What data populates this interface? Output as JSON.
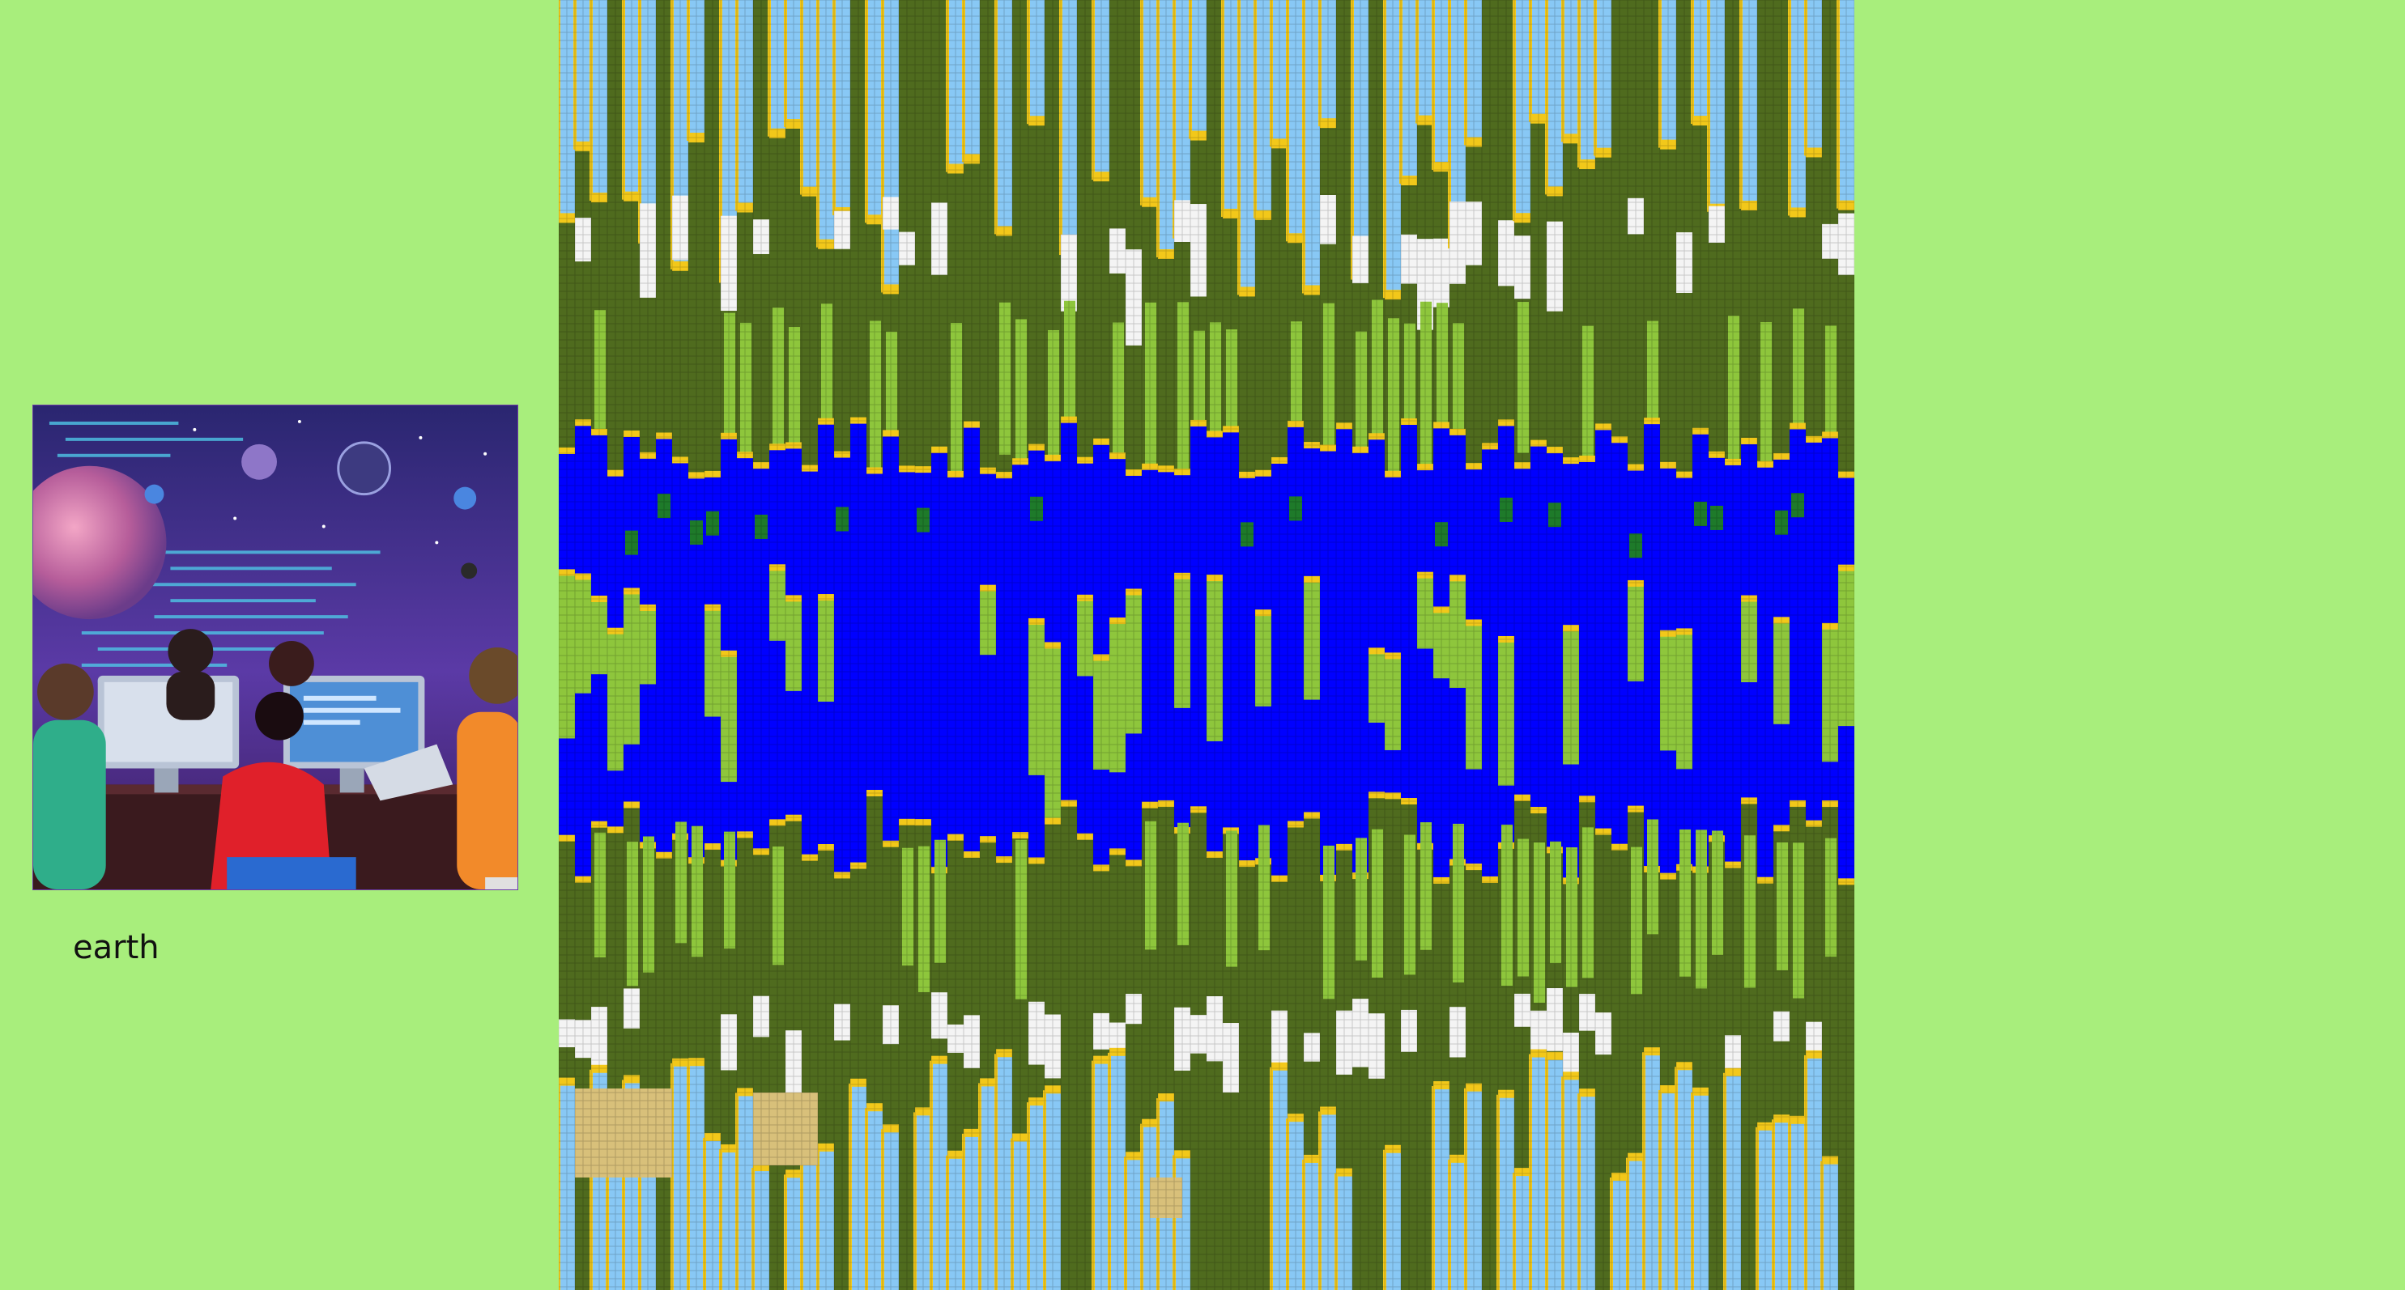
{
  "thumbnail": {
    "icon": "space-lab-scene-icon",
    "alt": ""
  },
  "label": {
    "text": "earth"
  },
  "map": {
    "terrain_types": {
      "water": "#0000ff",
      "sky": "#88c8f5",
      "grass_light": "#8ec63c",
      "grass_dark": "#4f6b1e",
      "forest": "#1e7a2a",
      "sand": "#f2c81a",
      "snow": "#f4f4f4",
      "desert": "#d8c07a"
    }
  }
}
